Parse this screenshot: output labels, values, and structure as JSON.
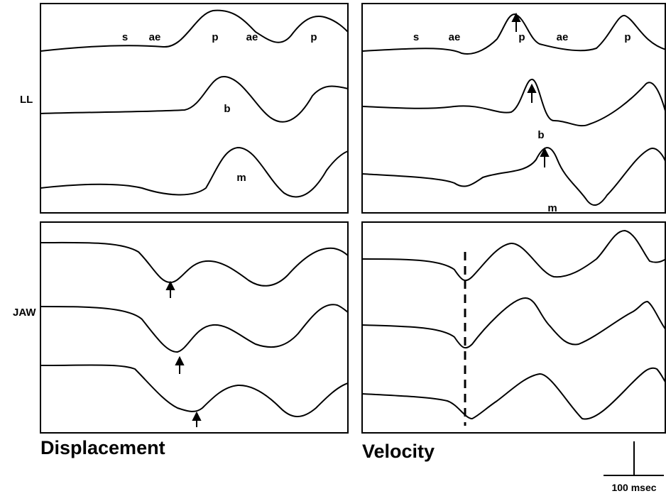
{
  "row_labels": [
    "LL",
    "JAW"
  ],
  "panels": [
    {
      "labels": [
        "s",
        "ae",
        "p",
        "ae",
        "p",
        "b",
        "m"
      ]
    },
    {
      "labels": [
        "s",
        "ae",
        "p",
        "ae",
        "p",
        "b",
        "m"
      ]
    }
  ],
  "column_titles": [
    "Displacement",
    "Velocity"
  ],
  "scale_bar": "100 msec"
}
